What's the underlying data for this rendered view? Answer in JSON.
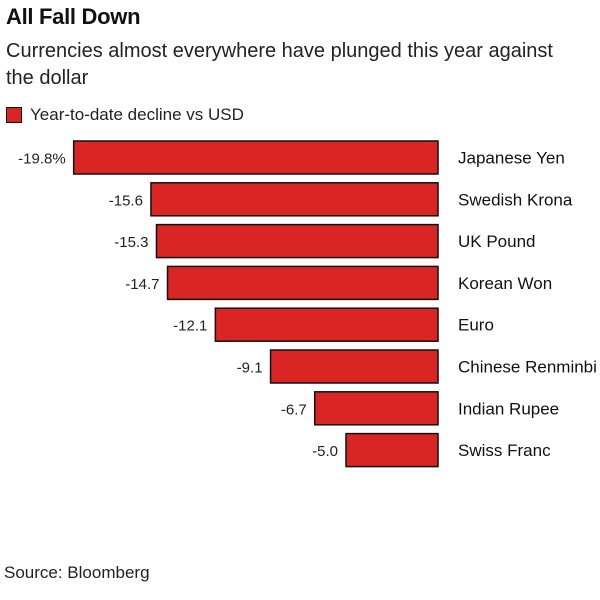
{
  "title": "All Fall Down",
  "subtitle": "Currencies almost everywhere have plunged this year against the dollar",
  "source": "Source: Bloomberg",
  "chart_data": {
    "type": "bar",
    "orientation": "horizontal",
    "title": "All Fall Down",
    "subtitle": "Currencies almost everywhere have plunged this year against the dollar",
    "legend": [
      "Year-to-date decline vs USD"
    ],
    "legend_placement": "top-left",
    "grid": false,
    "categories": [
      "Japanese Yen",
      "Swedish Krona",
      "UK Pound",
      "Korean Won",
      "Euro",
      "Chinese Renminbi",
      "Indian Rupee",
      "Swiss Franc"
    ],
    "values": [
      -19.8,
      -15.6,
      -15.3,
      -14.7,
      -12.1,
      -9.1,
      -6.7,
      -5.0
    ],
    "data_labels": [
      "-19.8%",
      "-15.6",
      "-15.3",
      "-14.7",
      "-12.1",
      "-9.1",
      "-6.7",
      "-5.0"
    ],
    "xlim": [
      -20,
      0
    ],
    "color": "#d92624",
    "source": "Source: Bloomberg"
  }
}
